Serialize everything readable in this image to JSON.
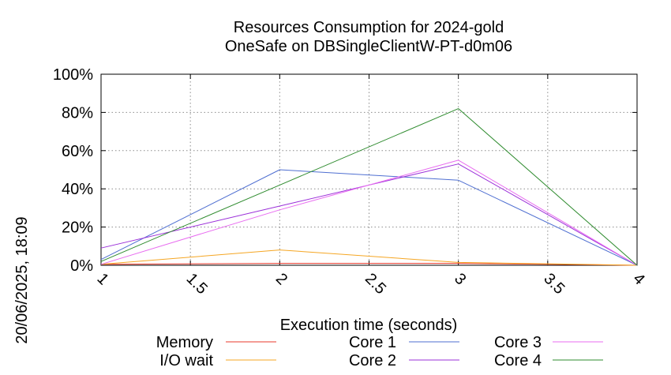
{
  "side_timestamp": "20/06/2025, 18:09",
  "chart_data": {
    "type": "line",
    "title": "Resources Consumption for 2024-gold",
    "subtitle": "OneSafe on DBSingleClientW-PT-d0m06",
    "xlabel": "Execution time (seconds)",
    "ylabel": "",
    "xlim": [
      1,
      4
    ],
    "ylim": [
      0,
      100
    ],
    "grid": true,
    "legend_position": "bottom",
    "x_ticks": [
      {
        "value": 1,
        "label": "1"
      },
      {
        "value": 1.5,
        "label": "1.5"
      },
      {
        "value": 2,
        "label": "2"
      },
      {
        "value": 2.5,
        "label": "2.5"
      },
      {
        "value": 3,
        "label": "3"
      },
      {
        "value": 3.5,
        "label": "3.5"
      },
      {
        "value": 4,
        "label": "4"
      }
    ],
    "y_ticks": [
      {
        "value": 0,
        "label": "0%"
      },
      {
        "value": 20,
        "label": "20%"
      },
      {
        "value": 40,
        "label": "40%"
      },
      {
        "value": 60,
        "label": "60%"
      },
      {
        "value": 80,
        "label": "80%"
      },
      {
        "value": 100,
        "label": "100%"
      }
    ],
    "series": [
      {
        "name": "Memory",
        "color": "#e8392b",
        "x": [
          1,
          2,
          3,
          4
        ],
        "y": [
          0.5,
          1,
          1,
          0
        ]
      },
      {
        "name": "I/O wait",
        "color": "#f5a623",
        "x": [
          1,
          2,
          3,
          4
        ],
        "y": [
          0.5,
          8,
          1.5,
          0
        ]
      },
      {
        "name": "Core 1",
        "color": "#4f6fd1",
        "x": [
          1,
          2,
          3,
          4
        ],
        "y": [
          3,
          50,
          44.5,
          0
        ]
      },
      {
        "name": "Core 2",
        "color": "#9b30d9",
        "x": [
          1,
          2,
          3,
          4
        ],
        "y": [
          9,
          31,
          53,
          0
        ]
      },
      {
        "name": "Core 3",
        "color": "#e86cf0",
        "x": [
          1,
          2,
          3,
          4
        ],
        "y": [
          0.5,
          29,
          55,
          0
        ]
      },
      {
        "name": "Core 4",
        "color": "#2e8b2e",
        "x": [
          1,
          2,
          3,
          4
        ],
        "y": [
          2,
          42,
          82,
          0
        ]
      }
    ]
  }
}
